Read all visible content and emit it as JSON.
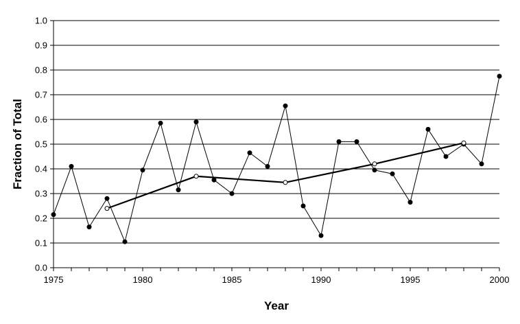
{
  "chart_data": {
    "type": "line",
    "title": "",
    "xlabel": "Year",
    "ylabel": "Fraction of Total",
    "xlim": [
      1975,
      2000
    ],
    "ylim": [
      0,
      1
    ],
    "x_ticks": [
      1975,
      1980,
      1985,
      1990,
      1995,
      2000
    ],
    "x_tick_labels": [
      "1975",
      "1980",
      "1985",
      "1990",
      "1995",
      "2000"
    ],
    "y_ticks": [
      0,
      0.1,
      0.2,
      0.3,
      0.4,
      0.5,
      0.6,
      0.7,
      0.8,
      0.9,
      1.0
    ],
    "y_tick_labels": [
      "0.0",
      "0.1",
      "0.2",
      "0.3",
      "0.4",
      "0.5",
      "0.6",
      "0.7",
      "0.8",
      "0.9",
      "1.0"
    ],
    "grid": "horizontal",
    "legend": "none",
    "series": [
      {
        "style": "thin-line-filled-markers",
        "color": "#000000",
        "x": [
          1975,
          1976,
          1977,
          1978,
          1979,
          1980,
          1981,
          1982,
          1983,
          1984,
          1985,
          1986,
          1987,
          1988,
          1989,
          1990,
          1991,
          1992,
          1993,
          1994,
          1995,
          1996,
          1997,
          1998,
          1999,
          2000
        ],
        "values": [
          0.215,
          0.41,
          0.165,
          0.28,
          0.105,
          0.395,
          0.585,
          0.315,
          0.59,
          0.355,
          0.3,
          0.465,
          0.41,
          0.655,
          0.25,
          0.13,
          0.51,
          0.51,
          0.395,
          0.38,
          0.265,
          0.56,
          0.45,
          0.5,
          0.42,
          0.775
        ]
      },
      {
        "style": "thick-line-open-markers",
        "color": "#000000",
        "x": [
          1978,
          1983,
          1988,
          1993,
          1998
        ],
        "values": [
          0.24,
          0.37,
          0.345,
          0.42,
          0.505
        ]
      }
    ]
  }
}
